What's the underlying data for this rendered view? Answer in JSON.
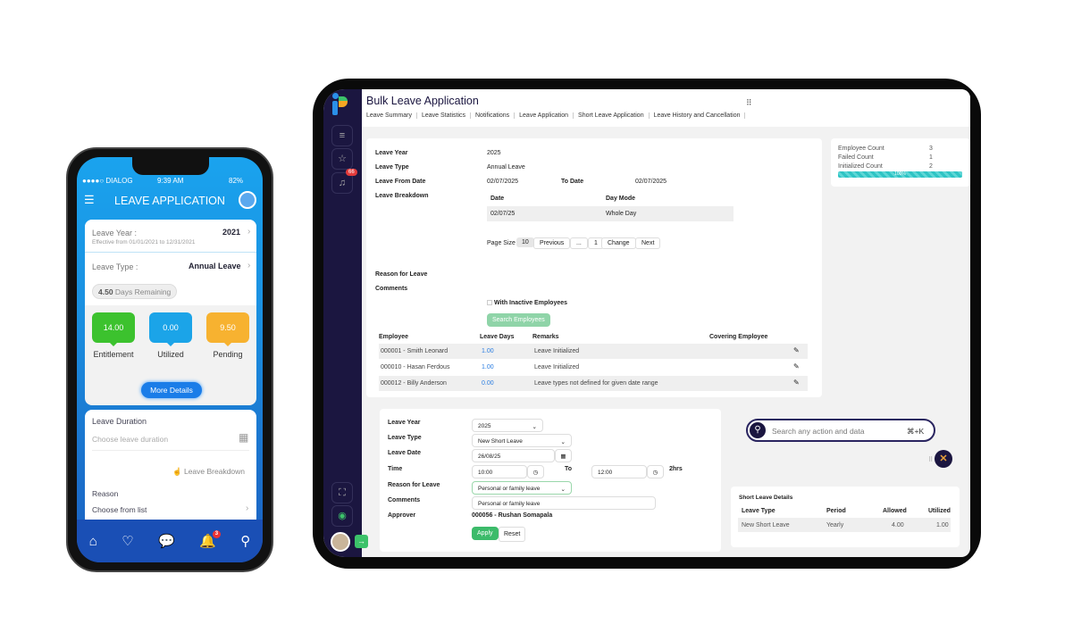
{
  "phone": {
    "status": {
      "carrier": "●●●●○ DIALOG",
      "time": "9:39 AM",
      "battery": "82%"
    },
    "title": "LEAVE APPLICATION",
    "leave_year_label": "Leave Year :",
    "leave_year": "2021",
    "effective": "Effective from 01/01/2021 to 12/31/2021",
    "leave_type_label": "Leave Type :",
    "leave_type": "Annual Leave",
    "remaining_value": "4.50",
    "remaining_label": "Days Remaining",
    "stats": [
      {
        "value": "14.00",
        "label": "Entitlement",
        "color": "#3cc22e"
      },
      {
        "value": "0.00",
        "label": "Utilized",
        "color": "#1ba4e8"
      },
      {
        "value": "9.50",
        "label": "Pending",
        "color": "#f7b230"
      }
    ],
    "more_details": "More Details",
    "leave_duration_label": "Leave Duration",
    "leave_duration_placeholder": "Choose leave duration",
    "leave_breakdown": "Leave Breakdown",
    "reason_label": "Reason",
    "reason_placeholder": "Choose from list",
    "notif_badge": "3"
  },
  "app": {
    "title": "Bulk Leave Application",
    "notif_badge": "66",
    "tabs": [
      "Leave Summary",
      "Leave Statistics",
      "Notifications",
      "Leave Application",
      "Short Leave Application",
      "Leave History and Cancellation"
    ],
    "bulk": {
      "leave_year_label": "Leave Year",
      "leave_year": "2025",
      "leave_type_label": "Leave Type",
      "leave_type": "Annual Leave",
      "from_label": "Leave From Date",
      "from": "02/07/2025",
      "to_label": "To Date",
      "to": "02/07/2025",
      "breakdown_label": "Leave Breakdown",
      "breakdown_headers": [
        "Date",
        "Day Mode"
      ],
      "breakdown_rows": [
        [
          "02/07/25",
          "Whole Day"
        ]
      ],
      "page_size_label": "Page Size",
      "page_size": "10",
      "prev": "Previous",
      "ellipsis": "...",
      "page": "1",
      "change": "Change",
      "next": "Next",
      "reason_label": "Reason for Leave",
      "comments_label": "Comments",
      "inactive_label": "With Inactive Employees",
      "search_btn": "Search Employees",
      "emp_headers": [
        "Employee",
        "Leave Days",
        "Remarks",
        "Covering Employee"
      ],
      "emp_rows": [
        {
          "employee": "000001 - Smith Leonard",
          "days": "1.00",
          "remarks": "Leave Initialized"
        },
        {
          "employee": "000010 - Hasan Ferdous",
          "days": "1.00",
          "remarks": "Leave Initialized"
        },
        {
          "employee": "000012 - Billy Anderson",
          "days": "0.00",
          "remarks": "Leave types not defined for given date range"
        }
      ]
    },
    "counts": {
      "employee_label": "Employee Count",
      "employee": "3",
      "failed_label": "Failed Count",
      "failed": "1",
      "initialized_label": "Initialized Count",
      "initialized": "2",
      "progress_label": "100%",
      "progress": 100,
      "progress_color": "#2ec4c4"
    },
    "short": {
      "leave_year_label": "Leave Year",
      "leave_year": "2025",
      "leave_type_label": "Leave Type",
      "leave_type": "New Short Leave",
      "leave_date_label": "Leave Date",
      "leave_date": "26/08/25",
      "time_label": "Time",
      "from_time": "10:00",
      "to_label": "To",
      "to_time": "12:00",
      "duration": "2hrs",
      "reason_label": "Reason for Leave",
      "reason": "Personal or family leave",
      "comments_label": "Comments",
      "comments": "Personal or family leave",
      "approver_label": "Approver",
      "approver": "000056 - Rushan Somapala",
      "apply": "Apply",
      "reset": "Reset"
    },
    "search": {
      "placeholder": "Search any action and data",
      "shortcut": "⌘+K"
    },
    "details": {
      "title": "Short Leave Details",
      "headers": [
        "Leave Type",
        "Period",
        "Allowed",
        "Utilized"
      ],
      "rows": [
        [
          "New Short Leave",
          "Yearly",
          "4.00",
          "1.00"
        ]
      ]
    }
  }
}
